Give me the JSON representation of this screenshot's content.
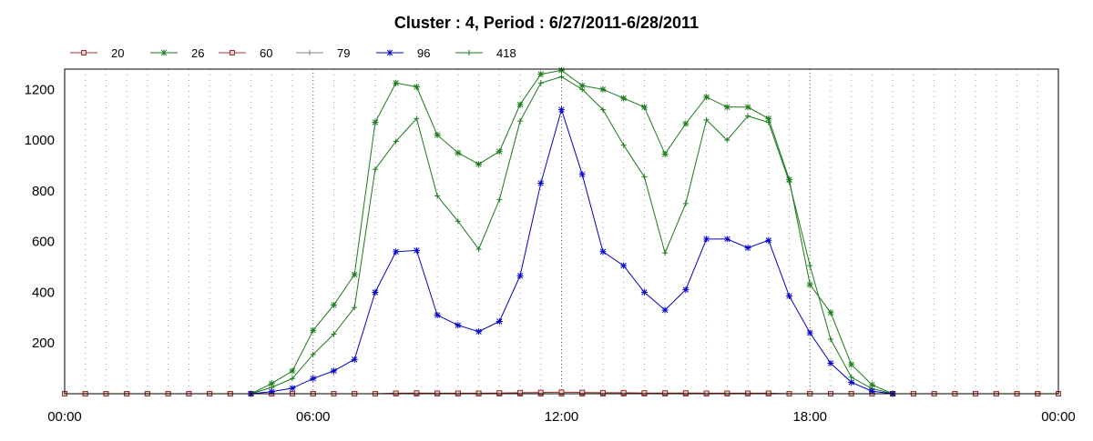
{
  "chart_data": {
    "type": "line",
    "title": "Cluster : 4, Period : 6/27/2011-6/28/2011",
    "xlabel": "",
    "ylabel": "",
    "x_ticks": [
      "00:00",
      "06:00",
      "12:00",
      "18:00",
      "00:00"
    ],
    "y_ticks": [
      200,
      400,
      600,
      800,
      1000,
      1200
    ],
    "xlim": [
      0,
      24
    ],
    "ylim": [
      0,
      1280
    ],
    "grid": "vertical dotted, every 30 min",
    "legend_position": "top-left",
    "x": [
      0,
      0.5,
      1,
      1.5,
      2,
      2.5,
      3,
      3.5,
      4,
      4.5,
      5,
      5.5,
      6,
      6.5,
      7,
      7.5,
      8,
      8.5,
      9,
      9.5,
      10,
      10.5,
      11,
      11.5,
      12,
      12.5,
      13,
      13.5,
      14,
      14.5,
      15,
      15.5,
      16,
      16.5,
      17,
      17.5,
      18,
      18.5,
      19,
      19.5,
      20,
      20.5,
      21,
      21.5,
      22,
      22.5,
      23,
      23.5,
      24
    ],
    "series": [
      {
        "name": "20",
        "color": "#a03030",
        "marker": "square",
        "values": [
          0,
          0,
          0,
          0,
          0,
          0,
          0,
          0,
          0,
          0,
          0,
          0,
          0,
          0,
          0,
          0,
          2,
          3,
          2,
          2,
          2,
          3,
          4,
          5,
          6,
          5,
          4,
          4,
          3,
          3,
          3,
          2,
          2,
          2,
          2,
          0,
          0,
          0,
          0,
          0,
          0,
          0,
          0,
          0,
          0,
          0,
          0,
          0,
          0
        ]
      },
      {
        "name": "26",
        "color": "#1a7a1a",
        "marker": "star",
        "values": [
          0,
          0,
          0,
          0,
          0,
          0,
          0,
          0,
          0,
          0,
          40,
          90,
          250,
          350,
          470,
          1070,
          1225,
          1210,
          1020,
          950,
          905,
          955,
          1140,
          1260,
          1275,
          1215,
          1200,
          1165,
          1130,
          945,
          1065,
          1170,
          1130,
          1130,
          1085,
          845,
          430,
          320,
          115,
          35,
          0,
          0,
          0,
          0,
          0,
          0,
          0,
          0,
          0
        ]
      },
      {
        "name": "60",
        "color": "#a03030",
        "marker": "square",
        "values": [
          0,
          0,
          0,
          0,
          0,
          0,
          0,
          0,
          0,
          0,
          0,
          0,
          0,
          0,
          0,
          0,
          0,
          0,
          0,
          0,
          0,
          0,
          0,
          0,
          0,
          0,
          0,
          0,
          0,
          0,
          0,
          0,
          0,
          0,
          0,
          0,
          0,
          0,
          0,
          0,
          0,
          0,
          0,
          0,
          0,
          0,
          0,
          0,
          0
        ]
      },
      {
        "name": "79",
        "color": "#808080",
        "marker": "plus",
        "values": [
          0,
          0,
          0,
          0,
          0,
          0,
          0,
          0,
          0,
          0,
          0,
          0,
          0,
          0,
          0,
          0,
          0,
          0,
          0,
          0,
          0,
          0,
          0,
          0,
          0,
          0,
          0,
          0,
          0,
          0,
          0,
          0,
          0,
          0,
          0,
          0,
          0,
          0,
          0,
          0,
          0,
          0,
          0,
          0,
          0,
          0,
          0,
          0,
          0
        ]
      },
      {
        "name": "96",
        "color": "#0000cc",
        "marker": "star",
        "values": [
          0,
          0,
          0,
          0,
          0,
          0,
          0,
          0,
          0,
          0,
          8,
          22,
          60,
          90,
          135,
          400,
          560,
          565,
          310,
          270,
          245,
          285,
          465,
          830,
          1120,
          865,
          560,
          505,
          400,
          330,
          410,
          610,
          610,
          575,
          605,
          385,
          240,
          120,
          45,
          10,
          0,
          0,
          0,
          0,
          0,
          0,
          0,
          0,
          0
        ]
      },
      {
        "name": "418",
        "color": "#1a7a1a",
        "marker": "plus",
        "values": [
          0,
          0,
          0,
          0,
          0,
          0,
          0,
          0,
          0,
          0,
          25,
          60,
          155,
          235,
          340,
          885,
          995,
          1085,
          780,
          680,
          570,
          765,
          1075,
          1225,
          1250,
          1200,
          1120,
          980,
          855,
          555,
          750,
          1080,
          1000,
          1095,
          1070,
          835,
          505,
          215,
          65,
          20,
          0,
          0,
          0,
          0,
          0,
          0,
          0,
          0,
          0
        ]
      }
    ]
  }
}
